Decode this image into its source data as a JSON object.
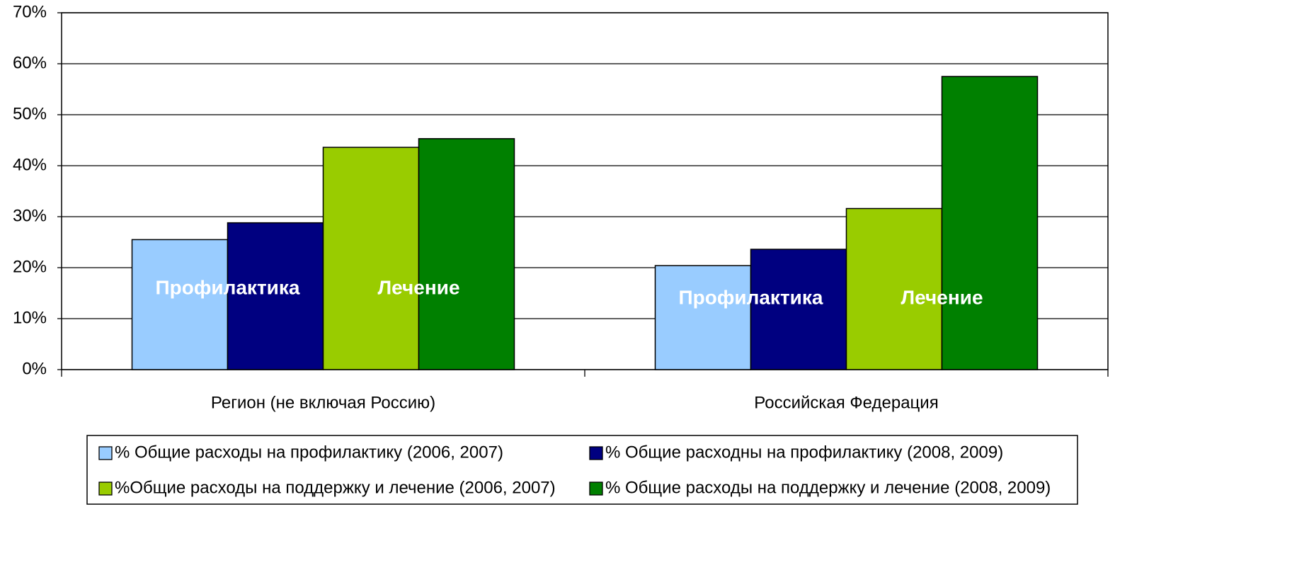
{
  "chart_data": {
    "type": "bar",
    "categories": [
      "Регион (не включая Россию)",
      "Российская Федерация"
    ],
    "series": [
      {
        "name": "% Общие расходы на профилактику (2006, 2007)",
        "color": "#99ccff",
        "values": [
          25.5,
          20.4
        ]
      },
      {
        "name": "% Общие расходны на профилактику (2008, 2009)",
        "color": "#000080",
        "values": [
          28.8,
          23.6
        ]
      },
      {
        "name": "%Общие расходы на поддержку и лечение (2006, 2007)",
        "color": "#99cc00",
        "values": [
          43.6,
          31.6
        ]
      },
      {
        "name": "% Общие расходы на поддержку и лечение  (2008, 2009)",
        "color": "#008000",
        "values": [
          45.3,
          57.5
        ]
      }
    ],
    "annotations": [
      "Профилактика",
      "Лечение",
      "Профилактика",
      "Лечение"
    ],
    "ylim": [
      0,
      70
    ],
    "yticks": [
      {
        "value": 0,
        "label": "0%"
      },
      {
        "value": 10,
        "label": "10%"
      },
      {
        "value": 20,
        "label": "20%"
      },
      {
        "value": 30,
        "label": "30%"
      },
      {
        "value": 40,
        "label": "40%"
      },
      {
        "value": 50,
        "label": "50%"
      },
      {
        "value": 60,
        "label": "60%"
      },
      {
        "value": 70,
        "label": "70%"
      }
    ],
    "grid": true,
    "legend": "bottom"
  }
}
